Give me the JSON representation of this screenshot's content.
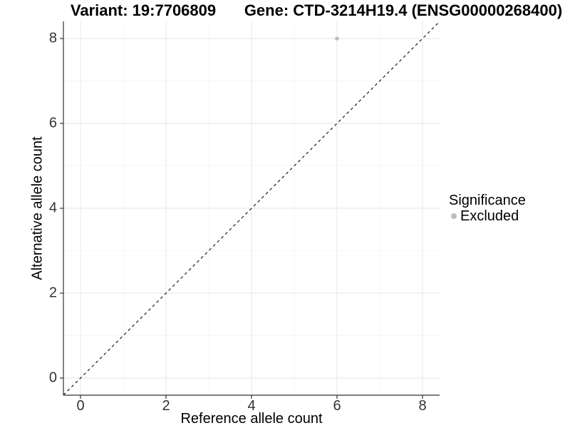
{
  "chart_data": {
    "type": "scatter",
    "title_left": "Variant: 19:7706809",
    "title_right": "Gene: CTD-3214H19.4 (ENSG00000268400)",
    "xlabel": "Reference allele count",
    "ylabel": "Alternative allele count",
    "xlim": [
      -0.4,
      8.4
    ],
    "ylim": [
      -0.4,
      8.4
    ],
    "x_ticks": [
      0,
      2,
      4,
      6,
      8
    ],
    "y_ticks": [
      0,
      2,
      4,
      6,
      8
    ],
    "x_minor_ticks": [
      1,
      3,
      5,
      7
    ],
    "y_minor_ticks": [
      1,
      3,
      5,
      7
    ],
    "grid": "major+minor",
    "identity_line": {
      "style": "dashed",
      "from": [
        -0.4,
        -0.4
      ],
      "to": [
        8.4,
        8.4
      ],
      "color": "#1a1a1a"
    },
    "series": [
      {
        "name": "Excluded",
        "color": "#bdbdbd",
        "points": [
          [
            6,
            8
          ]
        ]
      }
    ],
    "legend": {
      "title": "Significance",
      "position": "right",
      "items": [
        {
          "label": "Excluded",
          "color": "#bdbdbd"
        }
      ]
    }
  },
  "colors": {
    "background": "#ffffff",
    "grid_major": "#ebebeb",
    "grid_minor": "#f5f5f5",
    "axis_line": "#333333",
    "tick_text": "#333333",
    "title_text": "#000000"
  }
}
